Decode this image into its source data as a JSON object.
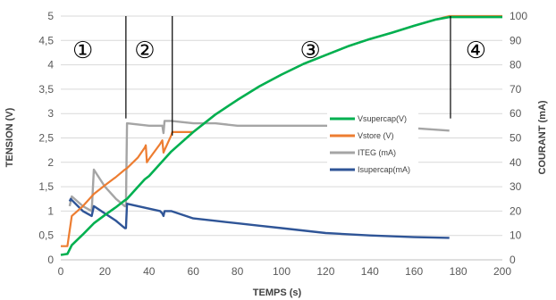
{
  "chart_data": {
    "type": "line",
    "title": "",
    "xlabel": "TEMPS (s)",
    "ylabel": "TENSION (V)",
    "y2label": "COURANT (mA)",
    "xlim": [
      0,
      200
    ],
    "ylim": [
      0,
      5
    ],
    "y2lim": [
      0,
      100
    ],
    "x_ticks": [
      "0",
      "20",
      "40",
      "60",
      "80",
      "100",
      "120",
      "140",
      "160",
      "180",
      "200"
    ],
    "y_ticks": [
      "0",
      "0,5",
      "1",
      "1,5",
      "2",
      "2,5",
      "3",
      "3,5",
      "4",
      "4,5",
      "5"
    ],
    "y2_ticks": [
      "0",
      "10",
      "20",
      "30",
      "40",
      "50",
      "60",
      "70",
      "80",
      "90",
      "100"
    ],
    "grid": "horizontal",
    "legend_position": "center-right",
    "phase_markers": [
      {
        "label": "①",
        "x": 10,
        "y": 4.3
      },
      {
        "label": "②",
        "x": 38,
        "y": 4.3
      },
      {
        "label": "③",
        "x": 113,
        "y": 4.3
      },
      {
        "label": "④",
        "x": 188,
        "y": 4.3
      }
    ],
    "phase_boundaries": [
      {
        "x": 29.5,
        "y_from": 2.9,
        "y_to": 5.0
      },
      {
        "x": 50.5,
        "y_from": 2.55,
        "y_to": 5.0
      },
      {
        "x": 176.5,
        "y_from": 2.9,
        "y_to": 5.0
      }
    ],
    "series": [
      {
        "name": "Vsupercap(V)",
        "axis": "left",
        "color": "#00b050",
        "x": [
          0,
          3,
          5,
          10,
          15,
          20,
          25,
          29,
          30,
          35,
          38,
          40,
          45,
          50,
          60,
          70,
          80,
          90,
          100,
          110,
          120,
          130,
          140,
          150,
          160,
          170,
          176,
          200
        ],
        "values": [
          0.1,
          0.12,
          0.3,
          0.52,
          0.75,
          0.92,
          1.08,
          1.22,
          1.25,
          1.5,
          1.65,
          1.72,
          1.97,
          2.22,
          2.62,
          2.98,
          3.28,
          3.56,
          3.8,
          4.02,
          4.2,
          4.38,
          4.53,
          4.66,
          4.8,
          4.93,
          4.98,
          4.98
        ]
      },
      {
        "name": "Vstore (V)",
        "axis": "left",
        "color": "#ed7d31",
        "x": [
          0,
          3,
          5,
          10,
          15,
          20,
          25,
          29,
          30,
          35,
          38,
          38.5,
          39,
          40,
          45,
          46,
          46.5,
          47,
          50,
          50.5,
          55,
          60,
          70,
          80,
          90,
          100,
          110,
          120,
          130,
          140,
          150,
          160,
          170,
          176,
          200
        ],
        "values": [
          0.28,
          0.28,
          0.9,
          1.1,
          1.35,
          1.53,
          1.7,
          1.85,
          1.88,
          2.1,
          2.3,
          2.35,
          2.0,
          2.07,
          2.38,
          2.45,
          2.2,
          2.25,
          2.55,
          2.62,
          2.62,
          2.62,
          2.98,
          3.28,
          3.56,
          3.8,
          4.02,
          4.2,
          4.38,
          4.53,
          4.66,
          4.8,
          4.93,
          5.0,
          5.0
        ]
      },
      {
        "name": "ITEG (mA)",
        "axis": "right",
        "color": "#a5a5a5",
        "x": [
          4,
          5,
          10,
          14,
          15,
          20,
          25,
          29,
          29.5,
          30,
          40,
          46,
          46.5,
          47,
          50,
          60,
          70,
          80,
          100,
          120,
          140,
          160,
          176
        ],
        "values": [
          22,
          26,
          22,
          20,
          37,
          30,
          25,
          22,
          22,
          56,
          55,
          55,
          52,
          57,
          57,
          56,
          56,
          55,
          55,
          55,
          54,
          54,
          53
        ]
      },
      {
        "name": "Isupercap(mA)",
        "axis": "right",
        "color": "#2f5597",
        "x": [
          4,
          4.5,
          10,
          14,
          15,
          20,
          25,
          29,
          29.5,
          30,
          35,
          40,
          45,
          46,
          46.5,
          47,
          50,
          60,
          70,
          80,
          90,
          100,
          120,
          140,
          160,
          176
        ],
        "values": [
          24,
          25,
          20,
          18,
          22,
          19,
          16,
          13,
          13,
          23,
          22,
          21,
          20,
          19,
          18,
          20,
          20,
          17,
          16,
          15,
          14,
          13,
          11,
          10,
          9.3,
          9
        ]
      }
    ]
  }
}
